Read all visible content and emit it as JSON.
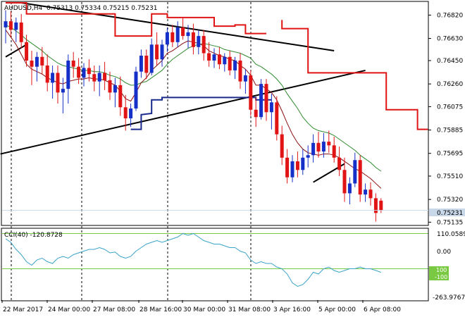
{
  "header": {
    "symbol": "AUDUSD,H4",
    "ohlc": "0.75313 0.75334 0.75215 0.75231"
  },
  "cci_panel": {
    "label": "CCI(40) -120.8728",
    "scale_top": "110.0589",
    "scale_zero": "0.00",
    "scale_bottom": "-263.9767",
    "level_up": "100",
    "level_down": "-100"
  },
  "price_axis": {
    "ticks": [
      "0.76820",
      "0.76630",
      "0.76450",
      "0.76260",
      "0.76075",
      "0.75885",
      "0.75695",
      "0.75510",
      "0.75320",
      "0.75135"
    ],
    "current_price": "0.75231"
  },
  "time_axis": {
    "labels": [
      "22 Mar 2017",
      "24 Mar 00:00",
      "27 Mar 08:00",
      "28 Mar 16:00",
      "30 Mar 00:00",
      "31 Mar 08:00",
      "3 Apr 16:00",
      "5 Apr 00:00",
      "6 Apr 08:00"
    ]
  },
  "colors": {
    "bull": "#1530c8",
    "bear": "#e01414",
    "stop_line": "#e01414",
    "step_line": "#1a2a8c",
    "ma_fast": "#8b1010",
    "ma_slow": "#2e8b2e",
    "cci_line": "#3aa3c8",
    "cci_levels": "#7ac943",
    "trendline": "#000000",
    "price_marker": "#c8d8e8"
  },
  "chart_data": {
    "type": "candlestick",
    "ylim": [
      0.7512,
      0.7692
    ],
    "candles": [
      [
        0.7672,
        0.7686,
        0.7659,
        0.7677
      ],
      [
        0.7677,
        0.7685,
        0.7664,
        0.767
      ],
      [
        0.767,
        0.768,
        0.766,
        0.7676
      ],
      [
        0.7676,
        0.7683,
        0.7655,
        0.766
      ],
      [
        0.766,
        0.7666,
        0.764,
        0.7645
      ],
      [
        0.7645,
        0.7653,
        0.7625,
        0.764
      ],
      [
        0.764,
        0.7652,
        0.7628,
        0.7648
      ],
      [
        0.7648,
        0.7656,
        0.7634,
        0.7641
      ],
      [
        0.7641,
        0.765,
        0.762,
        0.7627
      ],
      [
        0.7627,
        0.7641,
        0.7614,
        0.7635
      ],
      [
        0.7635,
        0.7641,
        0.761,
        0.7619
      ],
      [
        0.7619,
        0.7631,
        0.7602,
        0.7622
      ],
      [
        0.7622,
        0.765,
        0.761,
        0.7645
      ],
      [
        0.7645,
        0.7652,
        0.7631,
        0.764
      ],
      [
        0.764,
        0.7647,
        0.7626,
        0.7631
      ],
      [
        0.7631,
        0.7643,
        0.7624,
        0.7639
      ],
      [
        0.7639,
        0.7646,
        0.7628,
        0.7634
      ],
      [
        0.7634,
        0.7641,
        0.762,
        0.7628
      ],
      [
        0.7628,
        0.7641,
        0.7616,
        0.7635
      ],
      [
        0.7635,
        0.7644,
        0.7621,
        0.7629
      ],
      [
        0.7629,
        0.7636,
        0.7613,
        0.7619
      ],
      [
        0.7619,
        0.7631,
        0.7607,
        0.7625
      ],
      [
        0.7625,
        0.7632,
        0.76,
        0.7607
      ],
      [
        0.7607,
        0.7617,
        0.7588,
        0.7598
      ],
      [
        0.7598,
        0.761,
        0.7591,
        0.7606
      ],
      [
        0.7606,
        0.764,
        0.7604,
        0.7636
      ],
      [
        0.7636,
        0.7654,
        0.7631,
        0.7649
      ],
      [
        0.7649,
        0.7654,
        0.763,
        0.7635
      ],
      [
        0.7635,
        0.7663,
        0.7633,
        0.7658
      ],
      [
        0.7658,
        0.7668,
        0.7641,
        0.7646
      ],
      [
        0.7646,
        0.7662,
        0.764,
        0.7658
      ],
      [
        0.7658,
        0.7672,
        0.7652,
        0.7668
      ],
      [
        0.7668,
        0.7674,
        0.7656,
        0.766
      ],
      [
        0.766,
        0.7677,
        0.7656,
        0.7672
      ],
      [
        0.7672,
        0.768,
        0.7662,
        0.7665
      ],
      [
        0.7665,
        0.7674,
        0.7655,
        0.7668
      ],
      [
        0.7668,
        0.7675,
        0.765,
        0.7656
      ],
      [
        0.7656,
        0.767,
        0.765,
        0.7665
      ],
      [
        0.7665,
        0.767,
        0.7645,
        0.7651
      ],
      [
        0.7651,
        0.766,
        0.764,
        0.7645
      ],
      [
        0.7645,
        0.7655,
        0.7639,
        0.765
      ],
      [
        0.765,
        0.7656,
        0.7638,
        0.7642
      ],
      [
        0.7642,
        0.7651,
        0.7636,
        0.7648
      ],
      [
        0.7648,
        0.7653,
        0.7633,
        0.7637
      ],
      [
        0.7637,
        0.7648,
        0.763,
        0.7645
      ],
      [
        0.7645,
        0.7651,
        0.7622,
        0.7628
      ],
      [
        0.7628,
        0.7638,
        0.7618,
        0.7633
      ],
      [
        0.7633,
        0.7637,
        0.76,
        0.7605
      ],
      [
        0.7605,
        0.7615,
        0.7591,
        0.7599
      ],
      [
        0.7599,
        0.763,
        0.7597,
        0.7626
      ],
      [
        0.7626,
        0.763,
        0.7596,
        0.7603
      ],
      [
        0.7603,
        0.7618,
        0.7589,
        0.7611
      ],
      [
        0.7611,
        0.7616,
        0.758,
        0.7585
      ],
      [
        0.7585,
        0.7592,
        0.756,
        0.7566
      ],
      [
        0.7566,
        0.7573,
        0.7545,
        0.755
      ],
      [
        0.755,
        0.7568,
        0.7546,
        0.7563
      ],
      [
        0.7563,
        0.7571,
        0.755,
        0.7556
      ],
      [
        0.7556,
        0.7573,
        0.7552,
        0.7566
      ],
      [
        0.7566,
        0.7576,
        0.7558,
        0.7568
      ],
      [
        0.7568,
        0.7585,
        0.7562,
        0.7578
      ],
      [
        0.7578,
        0.7587,
        0.7566,
        0.7571
      ],
      [
        0.7571,
        0.7586,
        0.7566,
        0.7579
      ],
      [
        0.7579,
        0.7588,
        0.757,
        0.7576
      ],
      [
        0.7576,
        0.7583,
        0.7562,
        0.7566
      ],
      [
        0.7566,
        0.7575,
        0.7551,
        0.7556
      ],
      [
        0.7556,
        0.7566,
        0.753,
        0.7537
      ],
      [
        0.7537,
        0.755,
        0.7528,
        0.7545
      ],
      [
        0.7545,
        0.757,
        0.7542,
        0.7564
      ],
      [
        0.7564,
        0.7568,
        0.753,
        0.7536
      ],
      [
        0.7536,
        0.7545,
        0.753,
        0.754
      ],
      [
        0.754,
        0.7546,
        0.7527,
        0.7533
      ],
      [
        0.7533,
        0.7537,
        0.7514,
        0.7521
      ],
      [
        0.7531,
        0.7533,
        0.7521,
        0.7523
      ]
    ],
    "stop_line": [
      [
        0,
        0.7692
      ],
      [
        4,
        0.7692
      ],
      [
        4,
        0.7683
      ],
      [
        21,
        0.7683
      ],
      [
        21,
        0.7665
      ],
      [
        28,
        0.7665
      ],
      [
        28,
        0.7683
      ],
      [
        31,
        0.7683
      ],
      [
        31,
        0.768
      ],
      [
        40,
        0.768
      ],
      [
        40,
        0.7673
      ],
      [
        44,
        0.7673
      ],
      [
        44,
        0.7674
      ],
      [
        46,
        0.7674
      ],
      [
        46,
        0.7667
      ],
      [
        50,
        0.7667
      ],
      null,
      [
        53,
        0.7678
      ],
      [
        53,
        0.7671
      ],
      [
        58,
        0.7671
      ],
      [
        58,
        0.7635
      ],
      [
        73,
        0.7635
      ],
      [
        73,
        0.7605
      ],
      [
        79,
        0.7605
      ],
      [
        79,
        0.7589
      ],
      [
        81,
        0.7589
      ]
    ],
    "step_line": [
      [
        24,
        0.7589
      ],
      [
        26,
        0.7589
      ],
      [
        26,
        0.7601
      ],
      [
        28,
        0.7602
      ],
      [
        28,
        0.7613
      ],
      [
        30,
        0.7613
      ],
      [
        30,
        0.7615
      ],
      [
        48,
        0.7615
      ],
      [
        48,
        0.7613
      ],
      [
        51,
        0.7613
      ]
    ],
    "ma_fast": [
      0.767,
      0.7664,
      0.7658,
      0.765,
      0.7642,
      0.7638,
      0.7636,
      0.7634,
      0.7631,
      0.7629,
      0.7627,
      0.7626,
      0.7628,
      0.7629,
      0.763,
      0.763,
      0.7631,
      0.763,
      0.763,
      0.7629,
      0.7627,
      0.7625,
      0.762,
      0.7614,
      0.7612,
      0.7619,
      0.7627,
      0.7631,
      0.7637,
      0.7641,
      0.7645,
      0.7651,
      0.7653,
      0.7656,
      0.7659,
      0.7661,
      0.766,
      0.7659,
      0.7657,
      0.7653,
      0.7651,
      0.7649,
      0.7648,
      0.7646,
      0.7645,
      0.7641,
      0.7638,
      0.7633,
      0.7625,
      0.7625,
      0.7622,
      0.7619,
      0.7613,
      0.7604,
      0.7594,
      0.7585,
      0.7578,
      0.7573,
      0.757,
      0.7569,
      0.7568,
      0.7569,
      0.7569,
      0.7568,
      0.7566,
      0.7563,
      0.756,
      0.7557,
      0.7555,
      0.7552,
      0.7549,
      0.7545,
      0.7541
    ],
    "ma_slow": [
      0.7674,
      0.7672,
      0.7669,
      0.7666,
      0.7662,
      0.7659,
      0.7656,
      0.7653,
      0.7649,
      0.7646,
      0.7643,
      0.7641,
      0.764,
      0.7639,
      0.7638,
      0.7637,
      0.7637,
      0.7636,
      0.7636,
      0.7635,
      0.7633,
      0.7632,
      0.763,
      0.7627,
      0.7625,
      0.7625,
      0.7627,
      0.7628,
      0.7631,
      0.7634,
      0.7637,
      0.7642,
      0.7646,
      0.7649,
      0.7652,
      0.7655,
      0.7657,
      0.7658,
      0.7659,
      0.7658,
      0.7657,
      0.7656,
      0.7654,
      0.7653,
      0.7652,
      0.7651,
      0.7649,
      0.7647,
      0.7642,
      0.764,
      0.7637,
      0.7634,
      0.763,
      0.7625,
      0.7618,
      0.7612,
      0.7606,
      0.7599,
      0.7594,
      0.759,
      0.7588,
      0.7587,
      0.7586,
      0.7584,
      0.7581,
      0.7578,
      0.7575,
      0.7572,
      0.7568,
      0.7565,
      0.7562,
      0.7558,
      0.7555
    ],
    "trendlines": [
      [
        [
          0,
          0.7648
        ],
        [
          4,
          0.7658
        ]
      ],
      [
        [
          3,
          0.7692
        ],
        [
          63,
          0.7653
        ]
      ],
      [
        [
          -1,
          0.7569
        ],
        [
          69,
          0.7637
        ]
      ],
      [
        [
          59,
          0.7546
        ],
        [
          65,
          0.7561
        ]
      ]
    ],
    "cci": [
      70,
      50,
      10,
      -20,
      -60,
      -80,
      -50,
      -40,
      -60,
      -70,
      -40,
      -30,
      -40,
      -20,
      -10,
      0,
      10,
      10,
      20,
      10,
      -10,
      -5,
      -30,
      -40,
      -30,
      0,
      20,
      40,
      50,
      60,
      50,
      60,
      70,
      80,
      100,
      90,
      100,
      80,
      60,
      50,
      40,
      40,
      30,
      20,
      20,
      0,
      -10,
      -50,
      -70,
      -60,
      -70,
      -70,
      -90,
      -100,
      -130,
      -180,
      -200,
      -190,
      -160,
      -120,
      -130,
      -100,
      -90,
      -110,
      -120,
      -110,
      -100,
      -100,
      -90,
      -100,
      -100,
      -110,
      -120
    ],
    "cci_range": [
      -270,
      110
    ],
    "cci_levels": [
      100,
      -100
    ],
    "x_count": 82,
    "time_label_index": [
      0,
      9,
      18,
      27,
      36,
      45,
      54,
      63,
      72
    ]
  }
}
